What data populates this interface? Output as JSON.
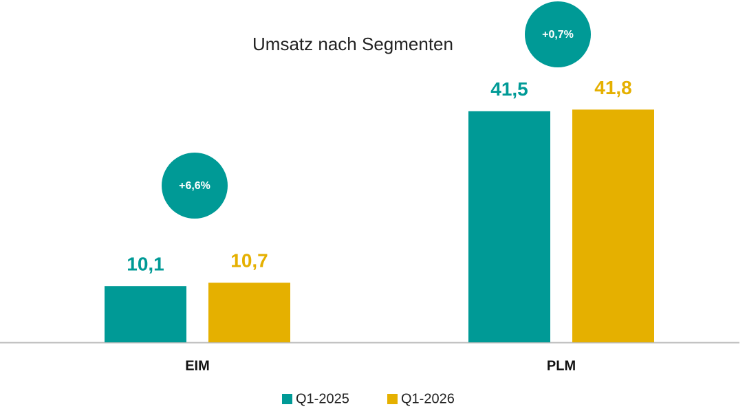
{
  "chart_data": {
    "type": "bar",
    "title": "Umsatz nach Segmenten",
    "categories": [
      "EIM",
      "PLM"
    ],
    "series": [
      {
        "name": "Q1-2025",
        "color": "#009a96",
        "values": [
          10.1,
          41.5
        ],
        "value_labels": [
          "10,1",
          "41,5"
        ]
      },
      {
        "name": "Q1-2026",
        "color": "#e5b000",
        "values": [
          10.7,
          41.8
        ],
        "value_labels": [
          "10,7",
          "41,8"
        ]
      }
    ],
    "annotations": [
      "+6,6%",
      "+0,7%"
    ]
  }
}
